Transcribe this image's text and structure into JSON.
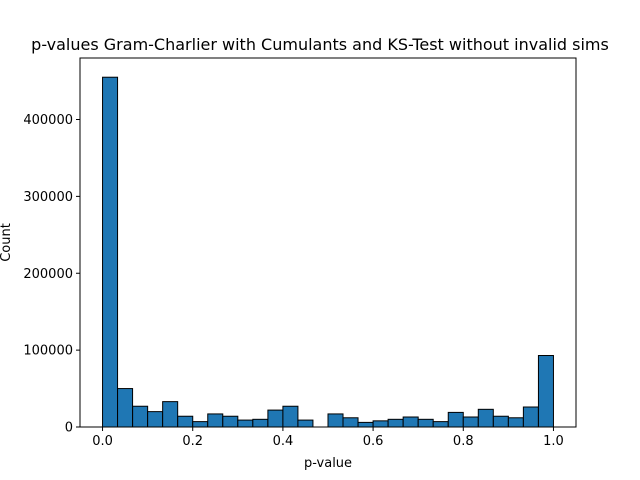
{
  "chart_data": {
    "type": "bar",
    "title": "p-values Gram-Charlier with Cumulants and KS-Test without invalid sims",
    "xlabel": "p-value",
    "ylabel": "Count",
    "xlim": [
      -0.05,
      1.05
    ],
    "ylim": [
      0,
      480000
    ],
    "xticks": [
      0.0,
      0.2,
      0.4,
      0.6,
      0.8,
      1.0
    ],
    "xtick_labels": [
      "0.0",
      "0.2",
      "0.4",
      "0.6",
      "0.8",
      "1.0"
    ],
    "yticks": [
      0,
      100000,
      200000,
      300000,
      400000
    ],
    "ytick_labels": [
      "0",
      "100000",
      "200000",
      "300000",
      "400000"
    ],
    "bin_width": 0.0333,
    "bin_starts": [
      0.0,
      0.0333,
      0.0667,
      0.1,
      0.1333,
      0.1667,
      0.2,
      0.2333,
      0.2667,
      0.3,
      0.3333,
      0.3667,
      0.4,
      0.4333,
      0.4667,
      0.5,
      0.5333,
      0.5667,
      0.6,
      0.6333,
      0.6667,
      0.7,
      0.7333,
      0.7667,
      0.8,
      0.8333,
      0.8667,
      0.9,
      0.9333,
      0.9667
    ],
    "values": [
      455000,
      50000,
      27000,
      20000,
      33000,
      14000,
      7000,
      17000,
      14000,
      9000,
      10000,
      22000,
      27000,
      9000,
      0,
      17000,
      12000,
      6000,
      8000,
      10000,
      13000,
      10000,
      7000,
      19000,
      13000,
      23000,
      14000,
      12000,
      26000,
      93000
    ],
    "bar_color": "#1f77b4",
    "edge_color": "#000000",
    "grid": false
  }
}
